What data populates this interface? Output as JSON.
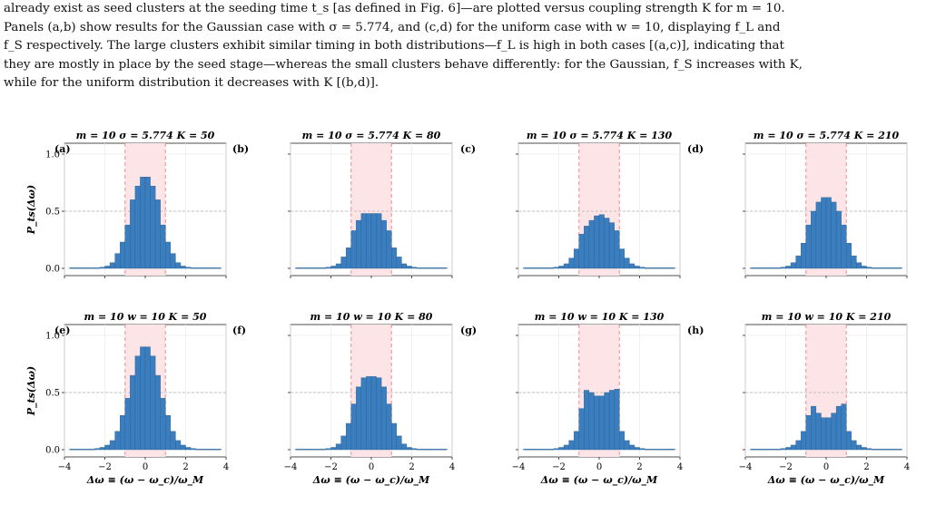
{
  "caption": {
    "lines": [
      "already exist as seed clusters at the seeding time t_s [as defined in Fig. 6]—are plotted versus coupling strength K for m = 10.",
      "Panels (a,b) show results for the Gaussian case with σ = 5.774, and (c,d) for the uniform case with w = 10, displaying f_L and",
      "f_S respectively. The large clusters exhibit similar timing in both distributions—f_L is high in both cases [(a,c)], indicating that",
      "they are mostly in place by the seed stage—whereas the small clusters behave differently: for the Gaussian, f_S increases with K,",
      "while for the uniform distribution it decreases with K [(b,d)]."
    ]
  },
  "colors": {
    "bar": "#3a7ebf",
    "bar_edge": "#2c5f8f",
    "band": "#fde4e6",
    "band_line": "#f08a92",
    "ref_line": "#b0b0b0"
  },
  "y_axis_label": "P_ts(Δω)",
  "x_axis_label": "Δω ≡ (ω − ω_c)/ω_M",
  "chart_data": [
    {
      "type": "bar",
      "panel": "(a)",
      "title": "m = 10   σ = 5.774   K = 50",
      "xlim": [
        -4,
        4
      ],
      "ylim": [
        0,
        1
      ],
      "x_ticks": [
        "−4",
        "−2",
        "0",
        "2",
        "4"
      ],
      "y_ticks": [
        "0.0",
        "0.5",
        "1.0"
      ],
      "highlight_band": [
        -1,
        1
      ],
      "ref_y": 0.5,
      "bin_width": 0.25,
      "x": [
        -3.625,
        -3.375,
        -3.125,
        -2.875,
        -2.625,
        -2.375,
        -2.125,
        -1.875,
        -1.625,
        -1.375,
        -1.125,
        -0.875,
        -0.625,
        -0.375,
        -0.125,
        0.125,
        0.375,
        0.625,
        0.875,
        1.125,
        1.375,
        1.625,
        1.875,
        2.125,
        2.375,
        2.625,
        2.875,
        3.125,
        3.375,
        3.625
      ],
      "values": [
        0.005,
        0.005,
        0.005,
        0.005,
        0.005,
        0.005,
        0.01,
        0.02,
        0.05,
        0.13,
        0.23,
        0.38,
        0.6,
        0.72,
        0.8,
        0.8,
        0.72,
        0.6,
        0.38,
        0.23,
        0.13,
        0.05,
        0.02,
        0.01,
        0.005,
        0.005,
        0.005,
        0.005,
        0.005,
        0.005
      ]
    },
    {
      "type": "bar",
      "panel": "(b)",
      "title": "m = 10   σ = 5.774   K = 80",
      "xlim": [
        -4,
        4
      ],
      "ylim": [
        0,
        1
      ],
      "x_ticks": [
        "−4",
        "−2",
        "0",
        "2",
        "4"
      ],
      "y_ticks": [
        "0.0",
        "0.5",
        "1.0"
      ],
      "highlight_band": [
        -1,
        1
      ],
      "ref_y": 0.5,
      "bin_width": 0.25,
      "x": [
        -3.625,
        -3.375,
        -3.125,
        -2.875,
        -2.625,
        -2.375,
        -2.125,
        -1.875,
        -1.625,
        -1.375,
        -1.125,
        -0.875,
        -0.625,
        -0.375,
        -0.125,
        0.125,
        0.375,
        0.625,
        0.875,
        1.125,
        1.375,
        1.625,
        1.875,
        2.125,
        2.375,
        2.625,
        2.875,
        3.125,
        3.375,
        3.625
      ],
      "values": [
        0.005,
        0.005,
        0.005,
        0.005,
        0.005,
        0.005,
        0.01,
        0.02,
        0.04,
        0.1,
        0.18,
        0.33,
        0.42,
        0.48,
        0.48,
        0.48,
        0.48,
        0.42,
        0.33,
        0.18,
        0.1,
        0.04,
        0.02,
        0.01,
        0.005,
        0.005,
        0.005,
        0.005,
        0.005,
        0.005
      ]
    },
    {
      "type": "bar",
      "panel": "(c)",
      "title": "m = 10   σ = 5.774   K = 130",
      "xlim": [
        -4,
        4
      ],
      "ylim": [
        0,
        1
      ],
      "x_ticks": [
        "−4",
        "−2",
        "0",
        "2",
        "4"
      ],
      "y_ticks": [
        "0.0",
        "0.5",
        "1.0"
      ],
      "highlight_band": [
        -1,
        1
      ],
      "ref_y": 0.5,
      "bin_width": 0.25,
      "x": [
        -3.625,
        -3.375,
        -3.125,
        -2.875,
        -2.625,
        -2.375,
        -2.125,
        -1.875,
        -1.625,
        -1.375,
        -1.125,
        -0.875,
        -0.625,
        -0.375,
        -0.125,
        0.125,
        0.375,
        0.625,
        0.875,
        1.125,
        1.375,
        1.625,
        1.875,
        2.125,
        2.375,
        2.625,
        2.875,
        3.125,
        3.375,
        3.625
      ],
      "values": [
        0.005,
        0.005,
        0.005,
        0.005,
        0.005,
        0.005,
        0.01,
        0.02,
        0.04,
        0.09,
        0.17,
        0.3,
        0.37,
        0.42,
        0.46,
        0.47,
        0.44,
        0.4,
        0.33,
        0.17,
        0.09,
        0.04,
        0.02,
        0.01,
        0.005,
        0.005,
        0.005,
        0.005,
        0.005,
        0.005
      ]
    },
    {
      "type": "bar",
      "panel": "(d)",
      "title": "m = 10   σ = 5.774   K = 210",
      "xlim": [
        -4,
        4
      ],
      "ylim": [
        0,
        1
      ],
      "x_ticks": [
        "−4",
        "−2",
        "0",
        "2",
        "4"
      ],
      "y_ticks": [
        "0.0",
        "0.5",
        "1.0"
      ],
      "highlight_band": [
        -1,
        1
      ],
      "ref_y": 0.5,
      "bin_width": 0.25,
      "x": [
        -3.625,
        -3.375,
        -3.125,
        -2.875,
        -2.625,
        -2.375,
        -2.125,
        -1.875,
        -1.625,
        -1.375,
        -1.125,
        -0.875,
        -0.625,
        -0.375,
        -0.125,
        0.125,
        0.375,
        0.625,
        0.875,
        1.125,
        1.375,
        1.625,
        1.875,
        2.125,
        2.375,
        2.625,
        2.875,
        3.125,
        3.375,
        3.625
      ],
      "values": [
        0.005,
        0.005,
        0.005,
        0.005,
        0.005,
        0.005,
        0.01,
        0.02,
        0.05,
        0.11,
        0.22,
        0.38,
        0.5,
        0.58,
        0.62,
        0.62,
        0.58,
        0.5,
        0.38,
        0.22,
        0.11,
        0.05,
        0.02,
        0.01,
        0.005,
        0.005,
        0.005,
        0.005,
        0.005,
        0.005
      ]
    },
    {
      "type": "bar",
      "panel": "(e)",
      "title": "m = 10   w = 10   K = 50",
      "xlim": [
        -4,
        4
      ],
      "ylim": [
        0,
        1
      ],
      "x_ticks": [
        "−4",
        "−2",
        "0",
        "2",
        "4"
      ],
      "y_ticks": [
        "0.0",
        "0.5",
        "1.0"
      ],
      "highlight_band": [
        -1,
        1
      ],
      "ref_y": 0.5,
      "bin_width": 0.25,
      "x": [
        -3.625,
        -3.375,
        -3.125,
        -2.875,
        -2.625,
        -2.375,
        -2.125,
        -1.875,
        -1.625,
        -1.375,
        -1.125,
        -0.875,
        -0.625,
        -0.375,
        -0.125,
        0.125,
        0.375,
        0.625,
        0.875,
        1.125,
        1.375,
        1.625,
        1.875,
        2.125,
        2.375,
        2.625,
        2.875,
        3.125,
        3.375,
        3.625
      ],
      "values": [
        0.005,
        0.005,
        0.005,
        0.005,
        0.005,
        0.01,
        0.02,
        0.04,
        0.08,
        0.16,
        0.3,
        0.45,
        0.65,
        0.82,
        0.9,
        0.9,
        0.82,
        0.65,
        0.45,
        0.3,
        0.16,
        0.08,
        0.04,
        0.02,
        0.01,
        0.005,
        0.005,
        0.005,
        0.005,
        0.005
      ]
    },
    {
      "type": "bar",
      "panel": "(f)",
      "title": "m = 10   w = 10   K = 80",
      "xlim": [
        -4,
        4
      ],
      "ylim": [
        0,
        1
      ],
      "x_ticks": [
        "−4",
        "−2",
        "0",
        "2",
        "4"
      ],
      "y_ticks": [
        "0.0",
        "0.5",
        "1.0"
      ],
      "highlight_band": [
        -1,
        1
      ],
      "ref_y": 0.5,
      "bin_width": 0.25,
      "x": [
        -3.625,
        -3.375,
        -3.125,
        -2.875,
        -2.625,
        -2.375,
        -2.125,
        -1.875,
        -1.625,
        -1.375,
        -1.125,
        -0.875,
        -0.625,
        -0.375,
        -0.125,
        0.125,
        0.375,
        0.625,
        0.875,
        1.125,
        1.375,
        1.625,
        1.875,
        2.125,
        2.375,
        2.625,
        2.875,
        3.125,
        3.375,
        3.625
      ],
      "values": [
        0.005,
        0.005,
        0.005,
        0.005,
        0.005,
        0.005,
        0.01,
        0.02,
        0.05,
        0.12,
        0.23,
        0.4,
        0.55,
        0.63,
        0.64,
        0.64,
        0.63,
        0.55,
        0.4,
        0.23,
        0.12,
        0.05,
        0.02,
        0.01,
        0.005,
        0.005,
        0.005,
        0.005,
        0.005,
        0.005
      ]
    },
    {
      "type": "bar",
      "panel": "(g)",
      "title": "m = 10   w = 10   K = 130",
      "xlim": [
        -4,
        4
      ],
      "ylim": [
        0,
        1
      ],
      "x_ticks": [
        "−4",
        "−2",
        "0",
        "2",
        "4"
      ],
      "y_ticks": [
        "0.0",
        "0.5",
        "1.0"
      ],
      "highlight_band": [
        -1,
        1
      ],
      "ref_y": 0.5,
      "bin_width": 0.25,
      "x": [
        -3.625,
        -3.375,
        -3.125,
        -2.875,
        -2.625,
        -2.375,
        -2.125,
        -1.875,
        -1.625,
        -1.375,
        -1.125,
        -0.875,
        -0.625,
        -0.375,
        -0.125,
        0.125,
        0.375,
        0.625,
        0.875,
        1.125,
        1.375,
        1.625,
        1.875,
        2.125,
        2.375,
        2.625,
        2.875,
        3.125,
        3.375,
        3.625
      ],
      "values": [
        0.005,
        0.005,
        0.005,
        0.005,
        0.005,
        0.005,
        0.01,
        0.02,
        0.04,
        0.08,
        0.16,
        0.36,
        0.52,
        0.5,
        0.47,
        0.47,
        0.5,
        0.52,
        0.53,
        0.16,
        0.08,
        0.04,
        0.02,
        0.01,
        0.005,
        0.005,
        0.005,
        0.005,
        0.005,
        0.005
      ]
    },
    {
      "type": "bar",
      "panel": "(h)",
      "title": "m = 10   w = 10   K = 210",
      "xlim": [
        -4,
        4
      ],
      "ylim": [
        0,
        1
      ],
      "x_ticks": [
        "−4",
        "−2",
        "0",
        "2",
        "4"
      ],
      "y_ticks": [
        "0.0",
        "0.5",
        "1.0"
      ],
      "highlight_band": [
        -1,
        1
      ],
      "ref_y": 0.5,
      "bin_width": 0.25,
      "x": [
        -3.625,
        -3.375,
        -3.125,
        -2.875,
        -2.625,
        -2.375,
        -2.125,
        -1.875,
        -1.625,
        -1.375,
        -1.125,
        -0.875,
        -0.625,
        -0.375,
        -0.125,
        0.125,
        0.375,
        0.625,
        0.875,
        1.125,
        1.375,
        1.625,
        1.875,
        2.125,
        2.375,
        2.625,
        2.875,
        3.125,
        3.375,
        3.625
      ],
      "values": [
        0.005,
        0.005,
        0.005,
        0.005,
        0.005,
        0.005,
        0.01,
        0.02,
        0.04,
        0.08,
        0.16,
        0.3,
        0.38,
        0.32,
        0.28,
        0.28,
        0.32,
        0.38,
        0.4,
        0.16,
        0.08,
        0.04,
        0.02,
        0.01,
        0.005,
        0.005,
        0.005,
        0.005,
        0.005,
        0.005
      ]
    }
  ]
}
